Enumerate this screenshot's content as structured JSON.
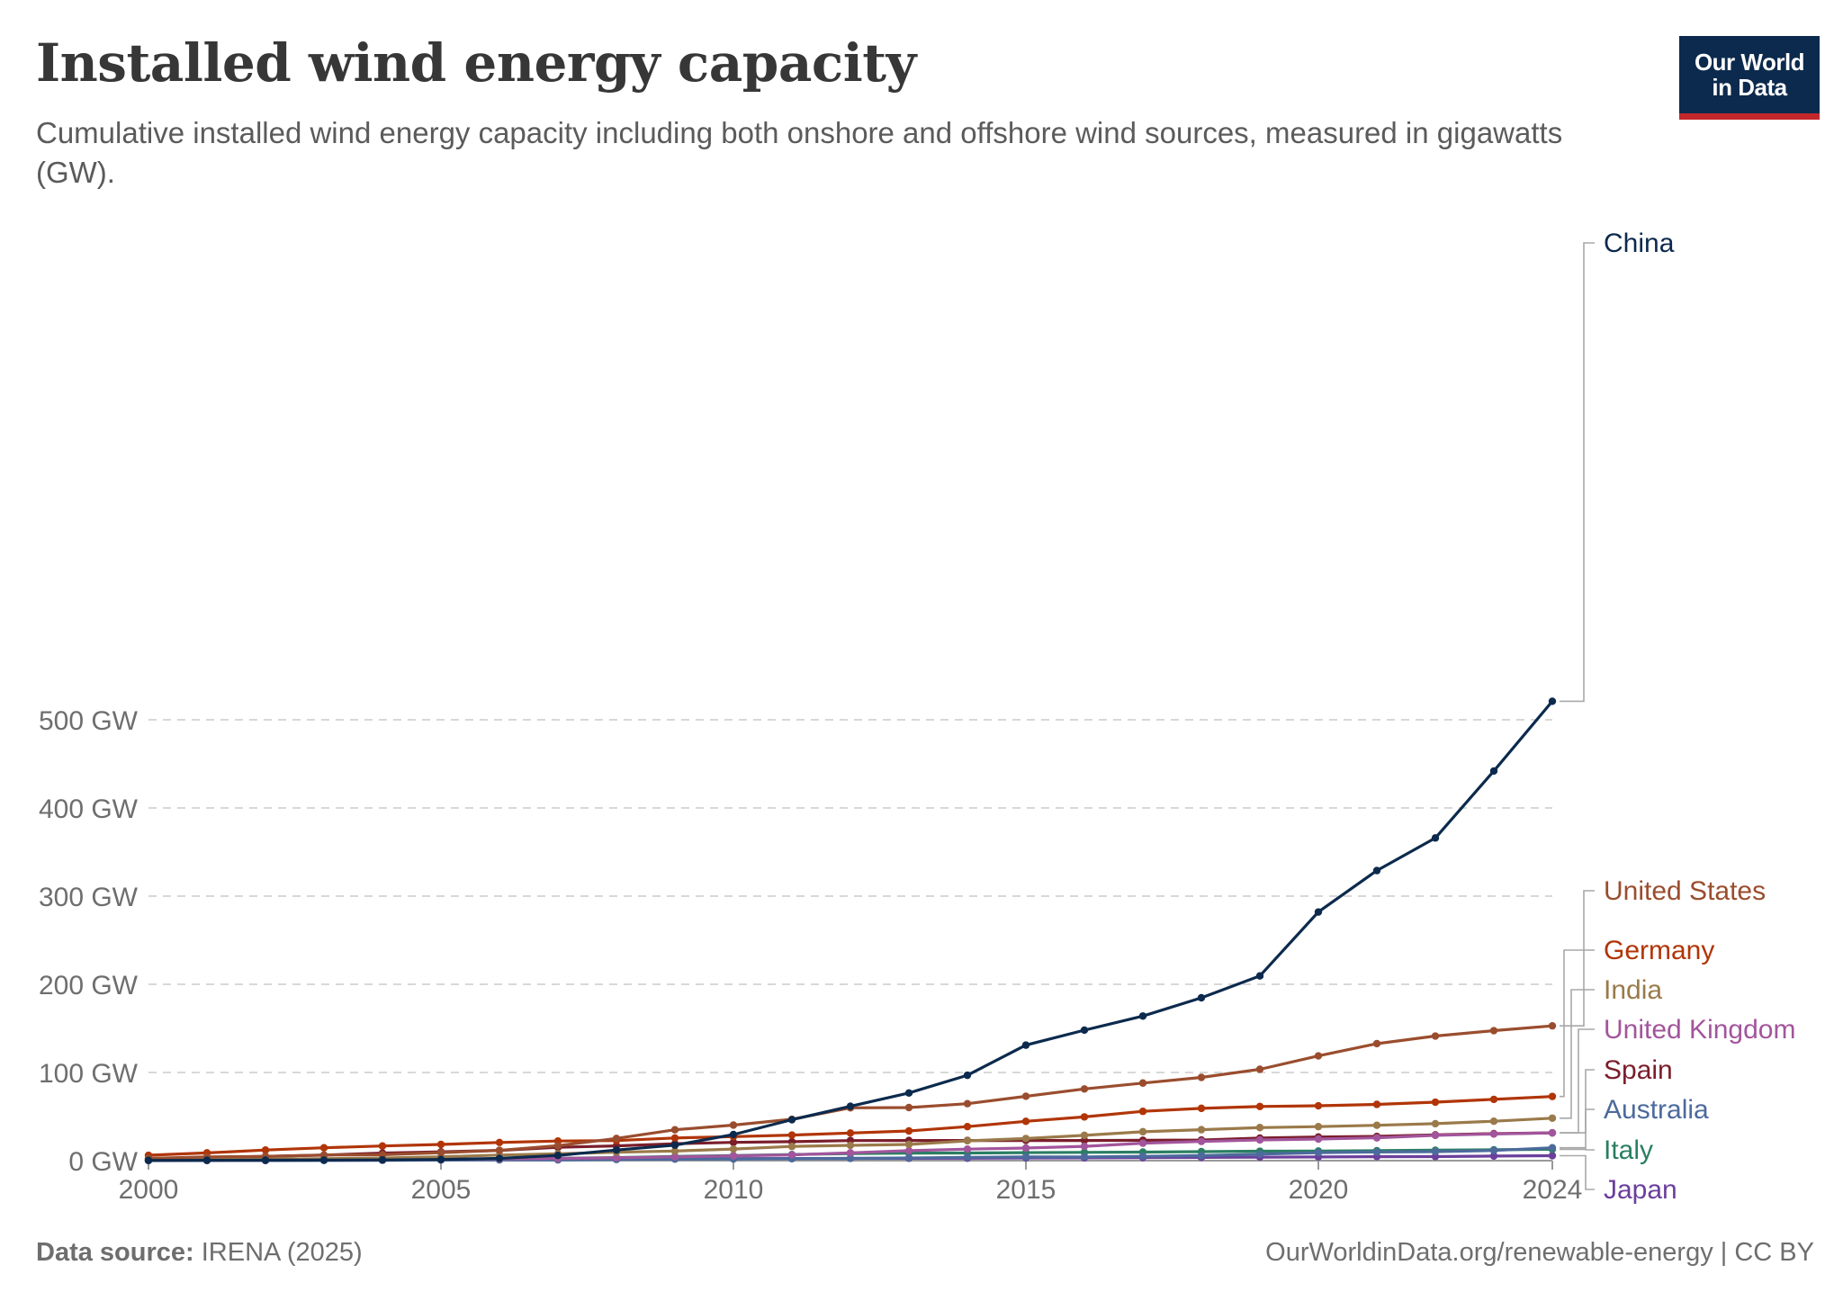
{
  "header": {
    "title": "Installed wind energy capacity",
    "subtitle": "Cumulative installed wind energy capacity including both onshore and offshore wind sources, measured in gigawatts (GW).",
    "logo_line1": "Our World",
    "logo_line2": "in Data"
  },
  "footer": {
    "source_label": "Data source:",
    "source_value": "IRENA (2025)",
    "attribution": "OurWorldinData.org/renewable-energy | CC BY"
  },
  "chart_data": {
    "type": "line",
    "title": "Installed wind energy capacity",
    "xlabel": "",
    "ylabel": "",
    "xlim": [
      2000,
      2024
    ],
    "ylim": [
      0,
      520
    ],
    "y_ticks": [
      {
        "value": 0,
        "label": "0 GW"
      },
      {
        "value": 100,
        "label": "100 GW"
      },
      {
        "value": 200,
        "label": "200 GW"
      },
      {
        "value": 300,
        "label": "300 GW"
      },
      {
        "value": 400,
        "label": "400 GW"
      },
      {
        "value": 500,
        "label": "500 GW"
      }
    ],
    "x_ticks": [
      {
        "value": 2000,
        "label": "2000"
      },
      {
        "value": 2005,
        "label": "2005"
      },
      {
        "value": 2010,
        "label": "2010"
      },
      {
        "value": 2015,
        "label": "2015"
      },
      {
        "value": 2020,
        "label": "2020"
      },
      {
        "value": 2024,
        "label": "2024"
      }
    ],
    "grid": "horizontal dashed",
    "legend": "line-end labels right",
    "x": [
      2000,
      2001,
      2002,
      2003,
      2004,
      2005,
      2006,
      2007,
      2008,
      2009,
      2010,
      2011,
      2012,
      2013,
      2014,
      2015,
      2016,
      2017,
      2018,
      2019,
      2020,
      2021,
      2022,
      2023,
      2024
    ],
    "series": [
      {
        "name": "China",
        "color": "#0c2a4d",
        "values": [
          0.3,
          0.4,
          0.5,
          0.6,
          0.8,
          1.3,
          2.6,
          5.9,
          12,
          17.6,
          29.6,
          46.4,
          61.6,
          76.7,
          96.8,
          131,
          148,
          164,
          184.7,
          209.5,
          281.99,
          328.97,
          365.96,
          441.89,
          521
        ]
      },
      {
        "name": "United States",
        "color": "#9a4d2e",
        "values": [
          2.6,
          4.3,
          4.7,
          6.4,
          6.7,
          9.1,
          11.6,
          16.9,
          25.2,
          35,
          40.3,
          46.9,
          59.9,
          60.2,
          64.6,
          73,
          81.3,
          88,
          94.4,
          103.6,
          118.8,
          132.7,
          141.3,
          147.4,
          152.9
        ]
      },
      {
        "name": "Germany",
        "color": "#b13507",
        "values": [
          6.1,
          8.8,
          12,
          14.6,
          16.6,
          18.4,
          20.6,
          22.2,
          22.8,
          25.7,
          27.2,
          29,
          31.3,
          33.7,
          38.6,
          44.6,
          49.6,
          55.9,
          59.3,
          61.4,
          62.2,
          63.8,
          66.3,
          69.5,
          72.8
        ]
      },
      {
        "name": "India",
        "color": "#9a7a4a",
        "values": [
          1.2,
          1.4,
          1.7,
          2.1,
          3,
          4.4,
          6.3,
          7.8,
          9.6,
          10.9,
          13.2,
          16.1,
          17.3,
          18.4,
          22.5,
          25.1,
          28.7,
          32.8,
          35.1,
          37.5,
          38.6,
          40.1,
          41.9,
          44.7,
          48.2
        ]
      },
      {
        "name": "United Kingdom",
        "color": "#a2559c",
        "values": [
          0.4,
          0.5,
          0.5,
          0.7,
          0.9,
          1.6,
          2,
          2.5,
          3.2,
          4.3,
          5.4,
          6.5,
          8.9,
          11.3,
          13.1,
          14.3,
          16.2,
          19.8,
          21.8,
          23.5,
          24.5,
          25.9,
          28.7,
          30.2,
          31.5
        ]
      },
      {
        "name": "Spain",
        "color": "#7a1e2b",
        "values": [
          2.2,
          3.4,
          4.9,
          6.2,
          8.6,
          10,
          11.6,
          15.1,
          16.7,
          19.2,
          20.7,
          21.5,
          22.8,
          22.9,
          22.9,
          22.9,
          22.9,
          23.1,
          23.4,
          25.6,
          26.8,
          27.5,
          29.3,
          30.6,
          31.5
        ]
      },
      {
        "name": "Australia",
        "color": "#4c6a9c",
        "values": [
          0.03,
          0.07,
          0.1,
          0.2,
          0.4,
          0.7,
          0.8,
          0.8,
          1.3,
          1.7,
          1.9,
          2.2,
          2.6,
          3.1,
          3.8,
          4.2,
          4.3,
          4.9,
          5.7,
          7.3,
          9.1,
          9.8,
          10.2,
          11.5,
          14.6
        ]
      },
      {
        "name": "Italy",
        "color": "#2a7e63",
        "values": [
          0.4,
          0.7,
          0.8,
          0.9,
          1.1,
          1.6,
          1.9,
          2.7,
          3.5,
          4.8,
          5.8,
          6.9,
          8.1,
          8.6,
          8.7,
          9.1,
          9.4,
          9.7,
          10.2,
          10.7,
          10.9,
          11.3,
          11.8,
          12.3,
          12.9
        ]
      },
      {
        "name": "Japan",
        "color": "#6b3f9c",
        "values": [
          0.1,
          0.3,
          0.4,
          0.5,
          0.9,
          1,
          1.3,
          1.5,
          1.8,
          2,
          2.3,
          2.4,
          2.6,
          2.7,
          2.8,
          3.1,
          3.2,
          3.4,
          3.7,
          3.9,
          4.2,
          4.5,
          4.6,
          5.2,
          5.6
        ]
      }
    ]
  }
}
